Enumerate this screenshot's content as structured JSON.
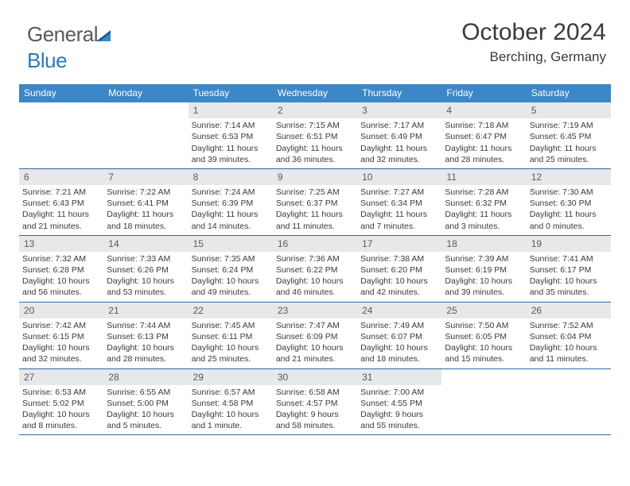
{
  "logo": {
    "part1": "General",
    "part2": "Blue"
  },
  "title": "October 2024",
  "location": "Berching, Germany",
  "colors": {
    "header_bg": "#3b87c8",
    "header_text": "#ffffff",
    "daynum_bg": "#e6e8ea",
    "text": "#3a3a3a",
    "rule": "#2d6aa3",
    "logo_gray": "#5a5a5a",
    "logo_blue": "#2b7bbf"
  },
  "typography": {
    "title_fontsize": 30,
    "location_fontsize": 17,
    "header_fontsize": 12,
    "body_fontsize": 10.5,
    "daynum_fontsize": 12
  },
  "day_labels": [
    "Sunday",
    "Monday",
    "Tuesday",
    "Wednesday",
    "Thursday",
    "Friday",
    "Saturday"
  ],
  "weeks": [
    [
      {
        "n": "",
        "lines": []
      },
      {
        "n": "",
        "lines": []
      },
      {
        "n": "1",
        "lines": [
          "Sunrise: 7:14 AM",
          "Sunset: 6:53 PM",
          "Daylight: 11 hours",
          "and 39 minutes."
        ]
      },
      {
        "n": "2",
        "lines": [
          "Sunrise: 7:15 AM",
          "Sunset: 6:51 PM",
          "Daylight: 11 hours",
          "and 36 minutes."
        ]
      },
      {
        "n": "3",
        "lines": [
          "Sunrise: 7:17 AM",
          "Sunset: 6:49 PM",
          "Daylight: 11 hours",
          "and 32 minutes."
        ]
      },
      {
        "n": "4",
        "lines": [
          "Sunrise: 7:18 AM",
          "Sunset: 6:47 PM",
          "Daylight: 11 hours",
          "and 28 minutes."
        ]
      },
      {
        "n": "5",
        "lines": [
          "Sunrise: 7:19 AM",
          "Sunset: 6:45 PM",
          "Daylight: 11 hours",
          "and 25 minutes."
        ]
      }
    ],
    [
      {
        "n": "6",
        "lines": [
          "Sunrise: 7:21 AM",
          "Sunset: 6:43 PM",
          "Daylight: 11 hours",
          "and 21 minutes."
        ]
      },
      {
        "n": "7",
        "lines": [
          "Sunrise: 7:22 AM",
          "Sunset: 6:41 PM",
          "Daylight: 11 hours",
          "and 18 minutes."
        ]
      },
      {
        "n": "8",
        "lines": [
          "Sunrise: 7:24 AM",
          "Sunset: 6:39 PM",
          "Daylight: 11 hours",
          "and 14 minutes."
        ]
      },
      {
        "n": "9",
        "lines": [
          "Sunrise: 7:25 AM",
          "Sunset: 6:37 PM",
          "Daylight: 11 hours",
          "and 11 minutes."
        ]
      },
      {
        "n": "10",
        "lines": [
          "Sunrise: 7:27 AM",
          "Sunset: 6:34 PM",
          "Daylight: 11 hours",
          "and 7 minutes."
        ]
      },
      {
        "n": "11",
        "lines": [
          "Sunrise: 7:28 AM",
          "Sunset: 6:32 PM",
          "Daylight: 11 hours",
          "and 3 minutes."
        ]
      },
      {
        "n": "12",
        "lines": [
          "Sunrise: 7:30 AM",
          "Sunset: 6:30 PM",
          "Daylight: 11 hours",
          "and 0 minutes."
        ]
      }
    ],
    [
      {
        "n": "13",
        "lines": [
          "Sunrise: 7:32 AM",
          "Sunset: 6:28 PM",
          "Daylight: 10 hours",
          "and 56 minutes."
        ]
      },
      {
        "n": "14",
        "lines": [
          "Sunrise: 7:33 AM",
          "Sunset: 6:26 PM",
          "Daylight: 10 hours",
          "and 53 minutes."
        ]
      },
      {
        "n": "15",
        "lines": [
          "Sunrise: 7:35 AM",
          "Sunset: 6:24 PM",
          "Daylight: 10 hours",
          "and 49 minutes."
        ]
      },
      {
        "n": "16",
        "lines": [
          "Sunrise: 7:36 AM",
          "Sunset: 6:22 PM",
          "Daylight: 10 hours",
          "and 46 minutes."
        ]
      },
      {
        "n": "17",
        "lines": [
          "Sunrise: 7:38 AM",
          "Sunset: 6:20 PM",
          "Daylight: 10 hours",
          "and 42 minutes."
        ]
      },
      {
        "n": "18",
        "lines": [
          "Sunrise: 7:39 AM",
          "Sunset: 6:19 PM",
          "Daylight: 10 hours",
          "and 39 minutes."
        ]
      },
      {
        "n": "19",
        "lines": [
          "Sunrise: 7:41 AM",
          "Sunset: 6:17 PM",
          "Daylight: 10 hours",
          "and 35 minutes."
        ]
      }
    ],
    [
      {
        "n": "20",
        "lines": [
          "Sunrise: 7:42 AM",
          "Sunset: 6:15 PM",
          "Daylight: 10 hours",
          "and 32 minutes."
        ]
      },
      {
        "n": "21",
        "lines": [
          "Sunrise: 7:44 AM",
          "Sunset: 6:13 PM",
          "Daylight: 10 hours",
          "and 28 minutes."
        ]
      },
      {
        "n": "22",
        "lines": [
          "Sunrise: 7:45 AM",
          "Sunset: 6:11 PM",
          "Daylight: 10 hours",
          "and 25 minutes."
        ]
      },
      {
        "n": "23",
        "lines": [
          "Sunrise: 7:47 AM",
          "Sunset: 6:09 PM",
          "Daylight: 10 hours",
          "and 21 minutes."
        ]
      },
      {
        "n": "24",
        "lines": [
          "Sunrise: 7:49 AM",
          "Sunset: 6:07 PM",
          "Daylight: 10 hours",
          "and 18 minutes."
        ]
      },
      {
        "n": "25",
        "lines": [
          "Sunrise: 7:50 AM",
          "Sunset: 6:05 PM",
          "Daylight: 10 hours",
          "and 15 minutes."
        ]
      },
      {
        "n": "26",
        "lines": [
          "Sunrise: 7:52 AM",
          "Sunset: 6:04 PM",
          "Daylight: 10 hours",
          "and 11 minutes."
        ]
      }
    ],
    [
      {
        "n": "27",
        "lines": [
          "Sunrise: 6:53 AM",
          "Sunset: 5:02 PM",
          "Daylight: 10 hours",
          "and 8 minutes."
        ]
      },
      {
        "n": "28",
        "lines": [
          "Sunrise: 6:55 AM",
          "Sunset: 5:00 PM",
          "Daylight: 10 hours",
          "and 5 minutes."
        ]
      },
      {
        "n": "29",
        "lines": [
          "Sunrise: 6:57 AM",
          "Sunset: 4:58 PM",
          "Daylight: 10 hours",
          "and 1 minute."
        ]
      },
      {
        "n": "30",
        "lines": [
          "Sunrise: 6:58 AM",
          "Sunset: 4:57 PM",
          "Daylight: 9 hours",
          "and 58 minutes."
        ]
      },
      {
        "n": "31",
        "lines": [
          "Sunrise: 7:00 AM",
          "Sunset: 4:55 PM",
          "Daylight: 9 hours",
          "and 55 minutes."
        ]
      },
      {
        "n": "",
        "lines": []
      },
      {
        "n": "",
        "lines": []
      }
    ]
  ]
}
